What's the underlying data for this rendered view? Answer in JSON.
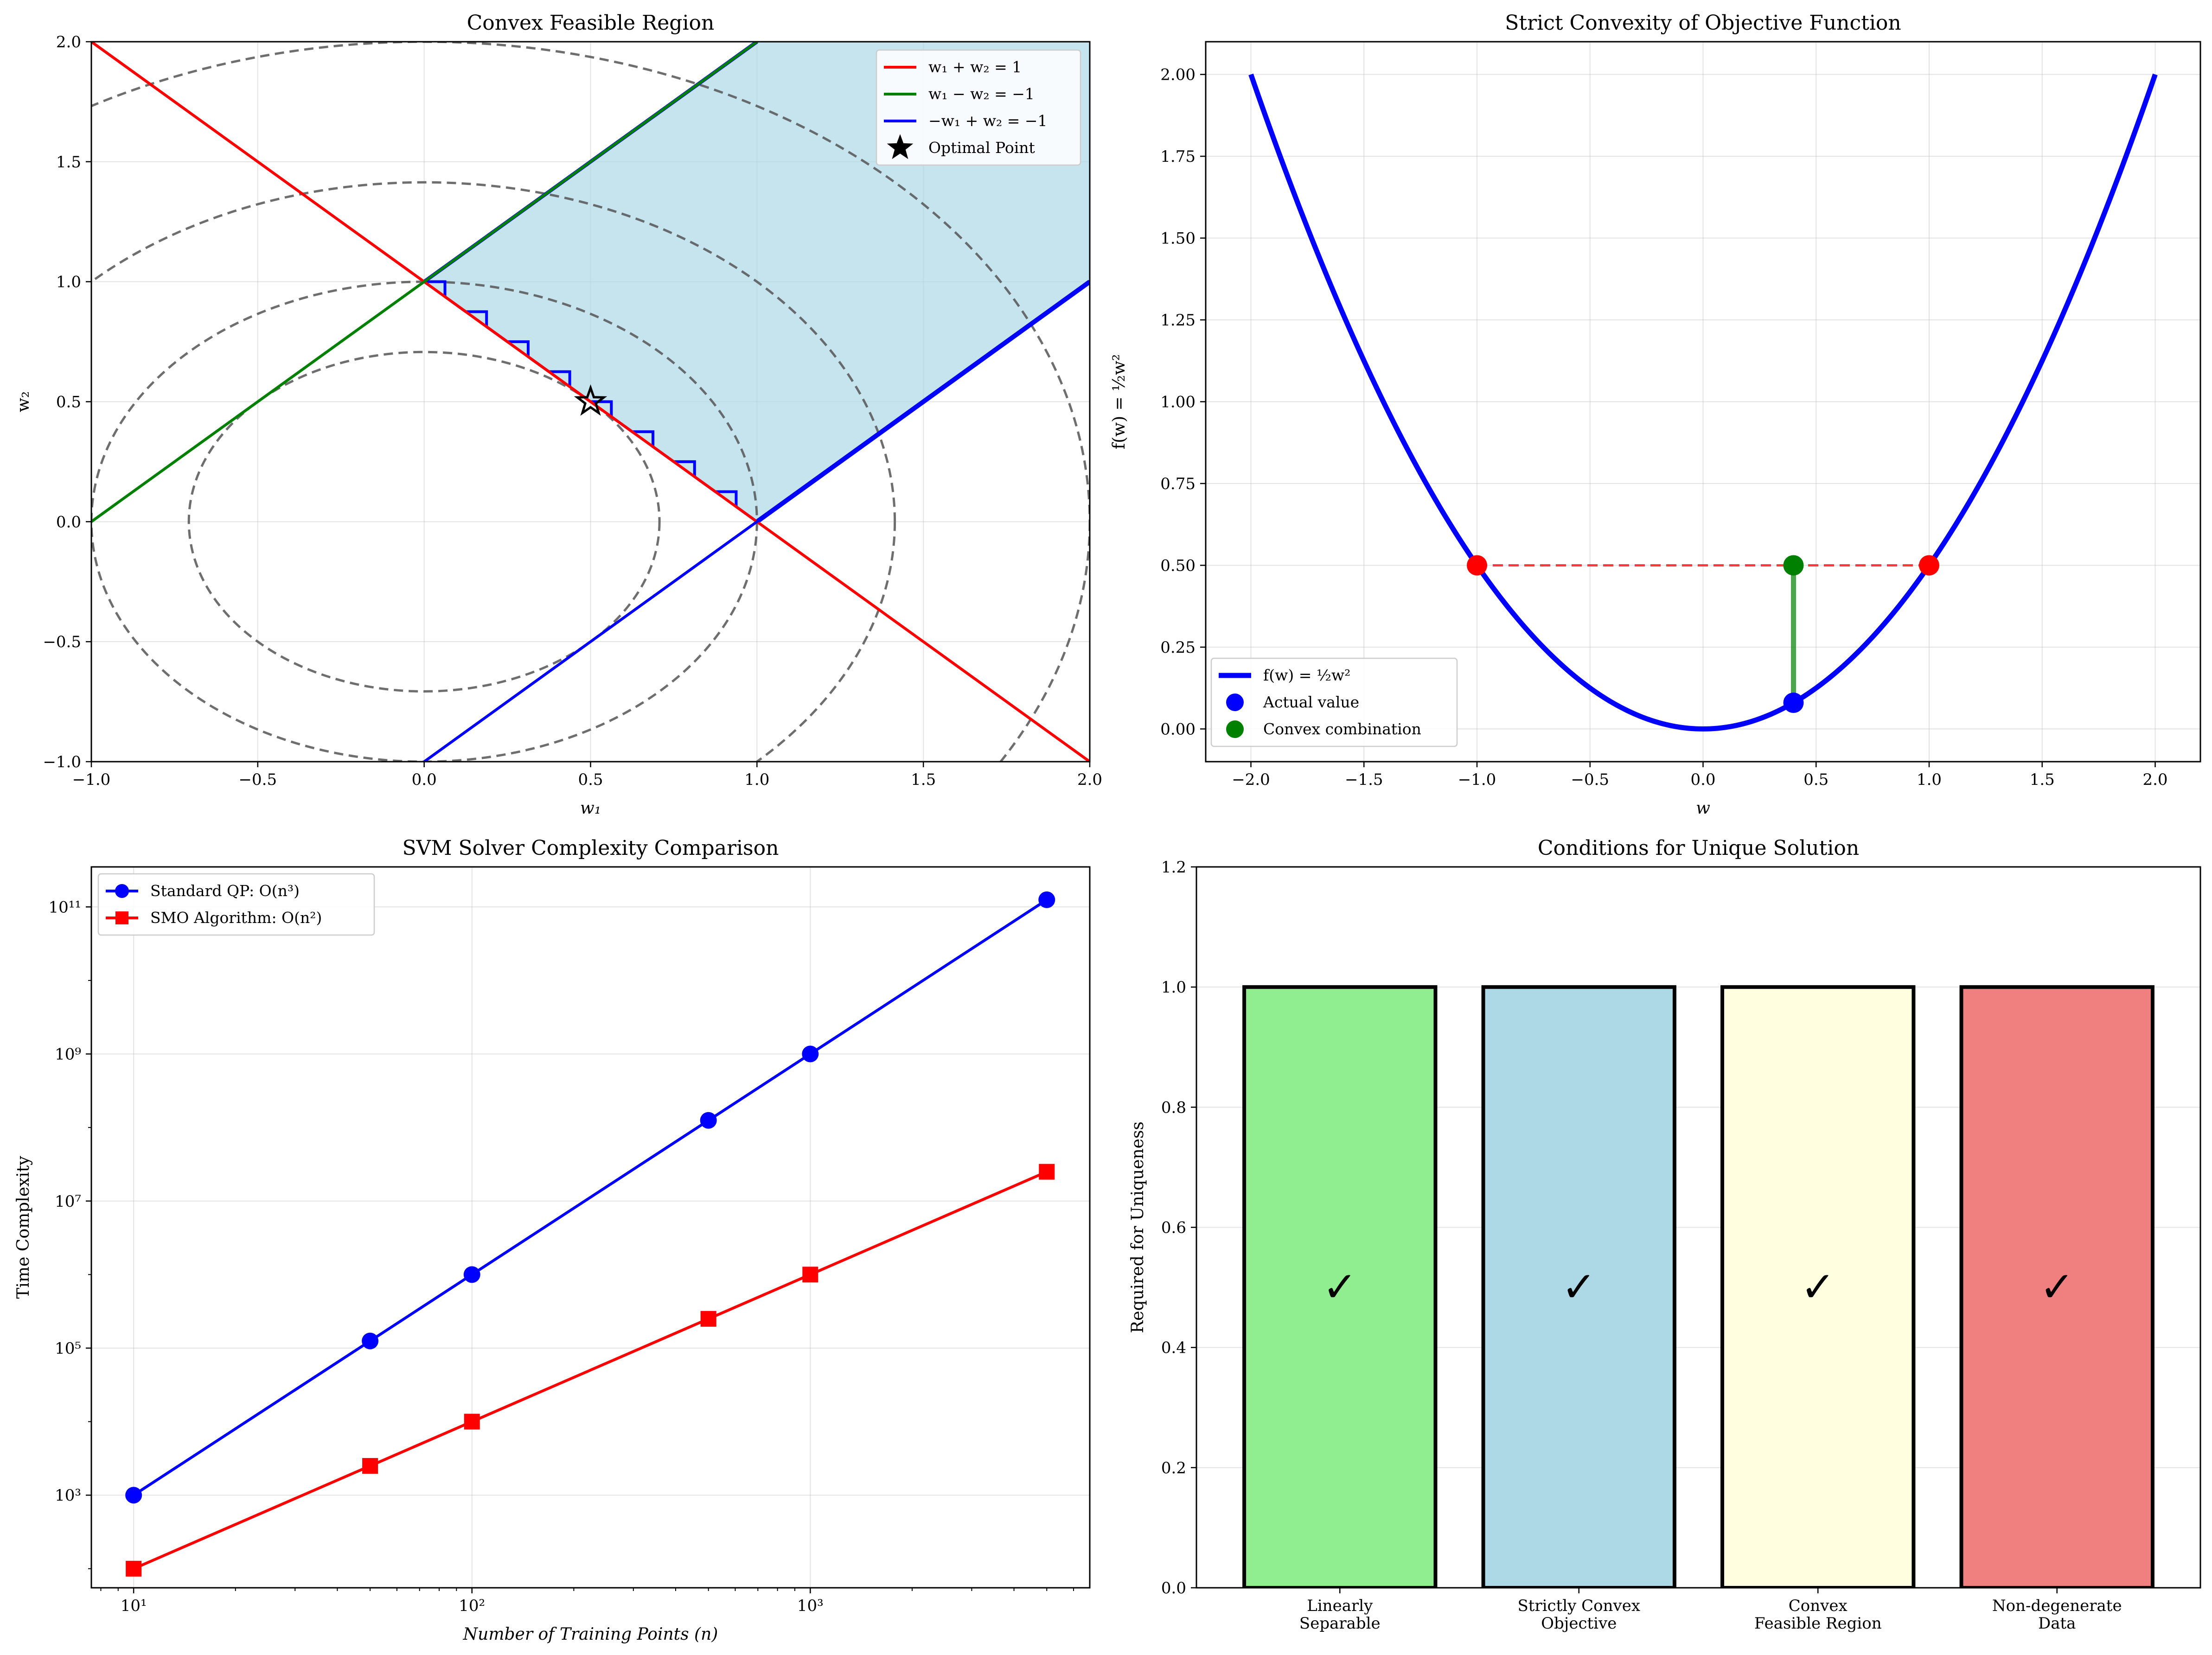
{
  "chart_data": [
    {
      "type": "line",
      "title": "Convex Feasible Region",
      "xlabel": "w₁",
      "ylabel": "w₂",
      "xlim": [
        -1.0,
        2.0
      ],
      "ylim": [
        -1.0,
        2.0
      ],
      "xticks": [
        -1.0,
        -0.5,
        0.0,
        0.5,
        1.0,
        1.5,
        2.0
      ],
      "yticks": [
        -1.0,
        -0.5,
        0.0,
        0.5,
        1.0,
        1.5,
        2.0
      ],
      "xtick_labels": [
        "−1.0",
        "−0.5",
        "0.0",
        "0.5",
        "1.0",
        "1.5",
        "2.0"
      ],
      "ytick_labels": [
        "−1.0",
        "−0.5",
        "0.0",
        "0.5",
        "1.0",
        "1.5",
        "2.0"
      ],
      "grid": true,
      "legend_position": "top-right",
      "series": [
        {
          "name": "w₁ + w₂ = 1",
          "color": "#ff0000",
          "points": [
            [
              -1.0,
              2.0
            ],
            [
              2.0,
              -1.0
            ]
          ]
        },
        {
          "name": "w₁ − w₂ = −1",
          "color": "#008000",
          "points": [
            [
              -1.0,
              0.0
            ],
            [
              2.0,
              3.0
            ]
          ]
        },
        {
          "name": "−w₁ + w₂ = −1",
          "color": "#0000ff",
          "points": [
            [
              0.0,
              -1.0
            ],
            [
              2.0,
              1.0
            ]
          ]
        }
      ],
      "feasible_region": {
        "color": "#add8e6",
        "polygon": [
          [
            0.0,
            1.0
          ],
          [
            1.0,
            0.0
          ],
          [
            2.0,
            1.0
          ],
          [
            2.0,
            2.0
          ],
          [
            1.0,
            2.0
          ]
        ]
      },
      "contours": {
        "radii": [
          0.7071,
          1.0,
          1.4142,
          2.0
        ],
        "color": "#555555",
        "style": "dashed"
      },
      "optimal_point": {
        "name": "Optimal Point",
        "x": 0.5,
        "y": 0.5,
        "marker": "star"
      }
    },
    {
      "type": "line",
      "title": "Strict Convexity of Objective Function",
      "xlabel": "w",
      "ylabel": "f(w) = ½w²",
      "xlim": [
        -2.2,
        2.2
      ],
      "ylim": [
        -0.1,
        2.1
      ],
      "xticks": [
        -2.0,
        -1.5,
        -1.0,
        -0.5,
        0.0,
        0.5,
        1.0,
        1.5,
        2.0
      ],
      "yticks": [
        0.0,
        0.25,
        0.5,
        0.75,
        1.0,
        1.25,
        1.5,
        1.75,
        2.0
      ],
      "xtick_labels": [
        "−2.0",
        "−1.5",
        "−1.0",
        "−0.5",
        "0.0",
        "0.5",
        "1.0",
        "1.5",
        "2.0"
      ],
      "ytick_labels": [
        "0.00",
        "0.25",
        "0.50",
        "0.75",
        "1.00",
        "1.25",
        "1.50",
        "1.75",
        "2.00"
      ],
      "grid": true,
      "legend_position": "bottom-left",
      "series": [
        {
          "name": "f(w) = ½w²",
          "color": "#0000ff",
          "function": "0.5*w^2",
          "domain": [
            -2.0,
            2.0
          ]
        }
      ],
      "chord": {
        "color": "#ff0000",
        "style": "dashed",
        "points": [
          [
            -1.0,
            0.5
          ],
          [
            1.0,
            0.5
          ]
        ]
      },
      "endpoints": {
        "color": "#ff0000",
        "points": [
          [
            -1.0,
            0.5
          ],
          [
            1.0,
            0.5
          ]
        ]
      },
      "actual_value": {
        "name": "Actual value",
        "color": "#0000ff",
        "x": 0.4,
        "y": 0.08
      },
      "convex_combination": {
        "name": "Convex combination",
        "color": "#008000",
        "x": 0.4,
        "y": 0.5
      }
    },
    {
      "type": "line",
      "title": "SVM Solver Complexity Comparison",
      "xlabel": "Number of Training Points (n)",
      "ylabel": "Time Complexity",
      "xscale": "log",
      "yscale": "log",
      "xlim": [
        7.5,
        6700
      ],
      "ylim": [
        55,
        350000000000
      ],
      "xticks": [
        10,
        100,
        1000
      ],
      "xtick_labels": [
        "10¹",
        "10²",
        "10³"
      ],
      "yticks": [
        1000,
        100000,
        10000000,
        1000000000,
        100000000000
      ],
      "ytick_labels": [
        "10³",
        "10⁵",
        "10⁷",
        "10⁹",
        "10¹¹"
      ],
      "grid": true,
      "legend_position": "top-left",
      "x": [
        10,
        50,
        100,
        500,
        1000,
        5000
      ],
      "series": [
        {
          "name": "Standard QP: O(n³)",
          "color": "#0000ff",
          "marker": "circle",
          "values": [
            1000,
            125000,
            1000000,
            125000000,
            1000000000,
            125000000000
          ]
        },
        {
          "name": "SMO Algorithm: O(n²)",
          "color": "#ff0000",
          "marker": "square",
          "values": [
            100,
            2500,
            10000,
            250000,
            1000000,
            25000000
          ]
        }
      ]
    },
    {
      "type": "bar",
      "title": "Conditions for Unique Solution",
      "xlabel": "",
      "ylabel": "Required for Uniqueness",
      "ylim": [
        0.0,
        1.2
      ],
      "yticks": [
        0.0,
        0.2,
        0.4,
        0.6,
        0.8,
        1.0,
        1.2
      ],
      "ytick_labels": [
        "0.0",
        "0.2",
        "0.4",
        "0.6",
        "0.8",
        "1.0",
        "1.2"
      ],
      "categories": [
        [
          "Linearly",
          "Separable"
        ],
        [
          "Strictly Convex",
          "Objective"
        ],
        [
          "Convex",
          "Feasible Region"
        ],
        [
          "Non-degenerate",
          "Data"
        ]
      ],
      "values": [
        1.0,
        1.0,
        1.0,
        1.0
      ],
      "colors": [
        "#90ee90",
        "#add8e6",
        "#ffffe0",
        "#f08080"
      ],
      "bar_annotation": "✓",
      "annotation_color": "#006400",
      "annotation_y": 0.5
    }
  ]
}
